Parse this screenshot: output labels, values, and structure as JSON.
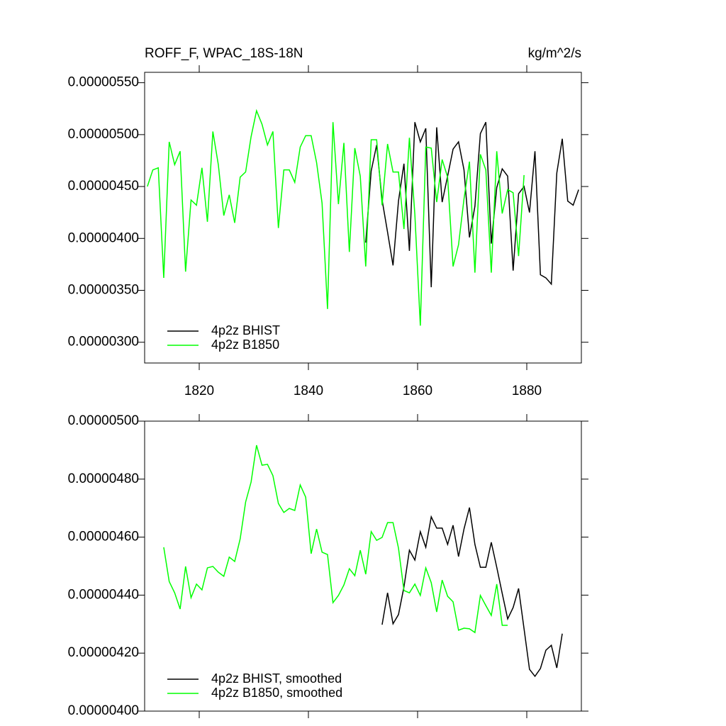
{
  "chart_data": [
    {
      "type": "line",
      "title": "ROFF_F, WPAC_18S-18N",
      "units": "kg/m^2/s",
      "xlim": [
        1810,
        1890
      ],
      "xticks": [
        1820,
        1840,
        1860,
        1880
      ],
      "ylim": [
        2.8e-06,
        5.6e-06
      ],
      "yticks": [
        {
          "value": 3e-06,
          "label": "0.00000300"
        },
        {
          "value": 3.5e-06,
          "label": "0.00000350"
        },
        {
          "value": 4e-06,
          "label": "0.00000400"
        },
        {
          "value": 4.5e-06,
          "label": "0.00000450"
        },
        {
          "value": 5e-06,
          "label": "0.00000500"
        },
        {
          "value": 5.5e-06,
          "label": "0.00000550"
        }
      ],
      "legend": "lower left",
      "series": [
        {
          "name": "4p2z BHIST",
          "color": "#000000",
          "x": [
            1850.5,
            1851.5,
            1852.5,
            1853.5,
            1854.5,
            1855.5,
            1856.5,
            1857.5,
            1858.5,
            1859.5,
            1860.5,
            1861.5,
            1862.5,
            1863.5,
            1864.5,
            1865.5,
            1866.5,
            1867.5,
            1868.5,
            1869.5,
            1870.5,
            1871.5,
            1872.5,
            1873.5,
            1874.5,
            1875.5,
            1876.5,
            1877.5,
            1878.5,
            1879.5,
            1880.5,
            1881.5,
            1882.5,
            1883.5,
            1884.5,
            1885.5,
            1886.5,
            1887.5,
            1888.5,
            1889.5
          ],
          "values": [
            3.96e-06,
            4.65e-06,
            4.9e-06,
            4.37e-06,
            4.06e-06,
            3.74e-06,
            4.36e-06,
            4.72e-06,
            3.88e-06,
            5.12e-06,
            4.93e-06,
            5.06e-06,
            3.53e-06,
            5.07e-06,
            4.35e-06,
            4.6e-06,
            4.86e-06,
            4.93e-06,
            4.66e-06,
            4.01e-06,
            4.31e-06,
            5.01e-06,
            5.12e-06,
            3.95e-06,
            4.49e-06,
            4.67e-06,
            4.6e-06,
            3.69e-06,
            4.43e-06,
            4.5e-06,
            4.25e-06,
            4.84e-06,
            3.65e-06,
            3.62e-06,
            3.56e-06,
            4.63e-06,
            4.96e-06,
            4.36e-06,
            4.32e-06,
            4.47e-06
          ]
        },
        {
          "name": "4p2z B1850",
          "color": "#00ff00",
          "x": [
            1810.5,
            1811.5,
            1812.5,
            1813.5,
            1814.5,
            1815.5,
            1816.5,
            1817.5,
            1818.5,
            1819.5,
            1820.5,
            1821.5,
            1822.5,
            1823.5,
            1824.5,
            1825.5,
            1826.5,
            1827.5,
            1828.5,
            1829.5,
            1830.5,
            1831.5,
            1832.5,
            1833.5,
            1834.5,
            1835.5,
            1836.5,
            1837.5,
            1838.5,
            1839.5,
            1840.5,
            1841.5,
            1842.5,
            1843.5,
            1844.5,
            1845.5,
            1846.5,
            1847.5,
            1848.5,
            1849.5,
            1850.5,
            1851.5,
            1852.5,
            1853.5,
            1854.5,
            1855.5,
            1856.5,
            1857.5,
            1858.5,
            1859.5,
            1860.5,
            1861.5,
            1862.5,
            1863.5,
            1864.5,
            1865.5,
            1866.5,
            1867.5,
            1868.5,
            1869.5,
            1870.5,
            1871.5,
            1872.5,
            1873.5,
            1874.5,
            1875.5,
            1876.5,
            1877.5,
            1878.5,
            1879.5
          ],
          "values": [
            4.5e-06,
            4.66e-06,
            4.68e-06,
            3.62e-06,
            4.93e-06,
            4.71e-06,
            4.84e-06,
            3.68e-06,
            4.37e-06,
            4.32e-06,
            4.68e-06,
            4.16e-06,
            5.03e-06,
            4.71e-06,
            4.22e-06,
            4.42e-06,
            4.15e-06,
            4.59e-06,
            4.64e-06,
            4.98e-06,
            5.23e-06,
            5.1e-06,
            4.9e-06,
            5.03e-06,
            4.1e-06,
            4.66e-06,
            4.66e-06,
            4.54e-06,
            4.88e-06,
            4.99e-06,
            4.99e-06,
            4.73e-06,
            4.34e-06,
            3.32e-06,
            5.12e-06,
            4.33e-06,
            4.92e-06,
            3.87e-06,
            4.87e-06,
            4.6e-06,
            3.73e-06,
            4.95e-06,
            4.95e-06,
            4.32e-06,
            4.91e-06,
            4.64e-06,
            4.64e-06,
            4.09e-06,
            4.97e-06,
            4.23e-06,
            3.16e-06,
            4.88e-06,
            4.87e-06,
            4.35e-06,
            4.76e-06,
            4.59e-06,
            3.73e-06,
            3.94e-06,
            4.38e-06,
            4.74e-06,
            3.67e-06,
            4.81e-06,
            4.66e-06,
            3.67e-06,
            4.84e-06,
            4.24e-06,
            4.47e-06,
            4.44e-06,
            3.83e-06,
            4.61e-06
          ]
        }
      ]
    },
    {
      "type": "line",
      "xlim": [
        1810,
        1890
      ],
      "ylim": [
        4e-06,
        5e-06
      ],
      "yticks": [
        {
          "value": 4e-06,
          "label": "0.00000400"
        },
        {
          "value": 4.2e-06,
          "label": "0.00000420"
        },
        {
          "value": 4.4e-06,
          "label": "0.00000440"
        },
        {
          "value": 4.6e-06,
          "label": "0.00000460"
        },
        {
          "value": 4.8e-06,
          "label": "0.00000480"
        },
        {
          "value": 5e-06,
          "label": "0.00000500"
        }
      ],
      "legend": "lower left",
      "series": [
        {
          "name": "4p2z BHIST, smoothed",
          "color": "#000000",
          "x": [
            1853.5,
            1854.5,
            1855.5,
            1856.5,
            1857.5,
            1858.5,
            1859.5,
            1860.5,
            1861.5,
            1862.5,
            1863.5,
            1864.5,
            1865.5,
            1866.5,
            1867.5,
            1868.5,
            1869.5,
            1870.5,
            1871.5,
            1872.5,
            1873.5,
            1874.5,
            1875.5,
            1876.5,
            1877.5,
            1878.5,
            1879.5,
            1880.5,
            1881.5,
            1882.5,
            1883.5,
            1884.5,
            1885.5,
            1886.5
          ],
          "values": [
            4.298e-06,
            4.408e-06,
            4.301e-06,
            4.333e-06,
            4.428e-06,
            4.555e-06,
            4.521e-06,
            4.619e-06,
            4.565e-06,
            4.67e-06,
            4.631e-06,
            4.631e-06,
            4.575e-06,
            4.641e-06,
            4.533e-06,
            4.628e-06,
            4.702e-06,
            4.575e-06,
            4.496e-06,
            4.496e-06,
            4.582e-06,
            4.496e-06,
            4.406e-06,
            4.318e-06,
            4.357e-06,
            4.423e-06,
            4.284e-06,
            4.144e-06,
            4.12e-06,
            4.147e-06,
            4.21e-06,
            4.227e-06,
            4.149e-06,
            4.267e-06
          ]
        },
        {
          "name": "4p2z B1850, smoothed",
          "color": "#00ff00",
          "x": [
            1813.5,
            1814.5,
            1815.5,
            1816.5,
            1817.5,
            1818.5,
            1819.5,
            1820.5,
            1821.5,
            1822.5,
            1823.5,
            1824.5,
            1825.5,
            1826.5,
            1827.5,
            1828.5,
            1829.5,
            1830.5,
            1831.5,
            1832.5,
            1833.5,
            1834.5,
            1835.5,
            1836.5,
            1837.5,
            1838.5,
            1839.5,
            1840.5,
            1841.5,
            1842.5,
            1843.5,
            1844.5,
            1845.5,
            1846.5,
            1847.5,
            1848.5,
            1849.5,
            1850.5,
            1851.5,
            1852.5,
            1853.5,
            1854.5,
            1855.5,
            1856.5,
            1857.5,
            1858.5,
            1859.5,
            1860.5,
            1861.5,
            1862.5,
            1863.5,
            1864.5,
            1865.5,
            1866.5,
            1867.5,
            1868.5,
            1869.5,
            1870.5,
            1871.5,
            1872.5,
            1873.5,
            1874.5,
            1875.5,
            1876.5
          ],
          "values": [
            4.565e-06,
            4.447e-06,
            4.408e-06,
            4.352e-06,
            4.499e-06,
            4.391e-06,
            4.438e-06,
            4.418e-06,
            4.494e-06,
            4.499e-06,
            4.479e-06,
            4.465e-06,
            4.531e-06,
            4.516e-06,
            4.594e-06,
            4.721e-06,
            4.79e-06,
            4.917e-06,
            4.848e-06,
            4.851e-06,
            4.812e-06,
            4.716e-06,
            4.685e-06,
            4.699e-06,
            4.692e-06,
            4.78e-06,
            4.738e-06,
            4.543e-06,
            4.628e-06,
            4.548e-06,
            4.54e-06,
            4.374e-06,
            4.399e-06,
            4.435e-06,
            4.491e-06,
            4.467e-06,
            4.555e-06,
            4.472e-06,
            4.619e-06,
            4.589e-06,
            4.599e-06,
            4.65e-06,
            4.65e-06,
            4.562e-06,
            4.416e-06,
            4.408e-06,
            4.438e-06,
            4.399e-06,
            4.494e-06,
            4.443e-06,
            4.342e-06,
            4.452e-06,
            4.396e-06,
            4.377e-06,
            4.279e-06,
            4.286e-06,
            4.284e-06,
            4.271e-06,
            4.399e-06,
            4.364e-06,
            4.33e-06,
            4.438e-06,
            4.296e-06,
            4.296e-06
          ]
        }
      ]
    }
  ]
}
